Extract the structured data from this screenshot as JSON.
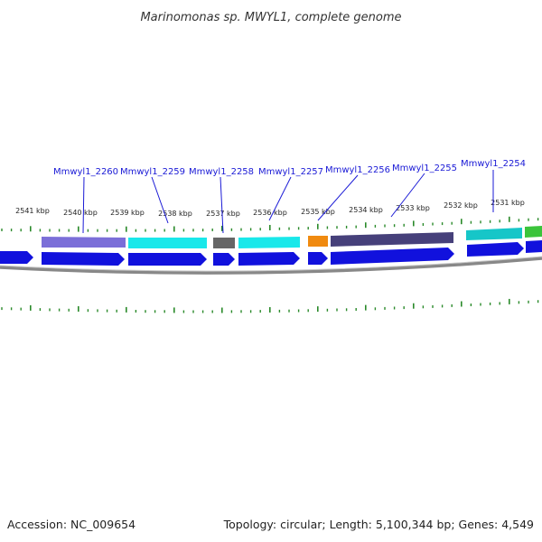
{
  "header": {
    "title": "Marinomonas sp. MWYL1, complete genome"
  },
  "footer": {
    "accession": "Accession: NC_009654",
    "summary": "Topology: circular; Length: 5,100,344 bp; Genes: 4,549"
  },
  "colors": {
    "gene_label": "#1a1ad6",
    "tick": "#2a8a2a",
    "backbone": "#808080",
    "cds_blue": "#1111dd"
  },
  "kbp_labels": [
    "2541 kbp",
    "2540 kbp",
    "2539 kbp",
    "2538 kbp",
    "2537 kbp",
    "2536 kbp",
    "2535 kbp",
    "2534 kbp",
    "2533 kbp",
    "2532 kbp",
    "2531 kbp"
  ],
  "genes": [
    {
      "label": "Mmwyl1_2260",
      "color": "#7b6fd8"
    },
    {
      "label": "Mmwyl1_2259",
      "color": "#19e8ea"
    },
    {
      "label": "Mmwyl1_2258",
      "color": "#666666"
    },
    {
      "label": "Mmwyl1_2257",
      "color": "#19e8ea"
    },
    {
      "label": "Mmwyl1_2256",
      "color": "#f08a10"
    },
    {
      "label": "Mmwyl1_2255",
      "color": "#46407a"
    },
    {
      "label": "Mmwyl1_2254",
      "color": "#16c6c8"
    }
  ],
  "extra_feature": {
    "color": "#3bc43b"
  }
}
